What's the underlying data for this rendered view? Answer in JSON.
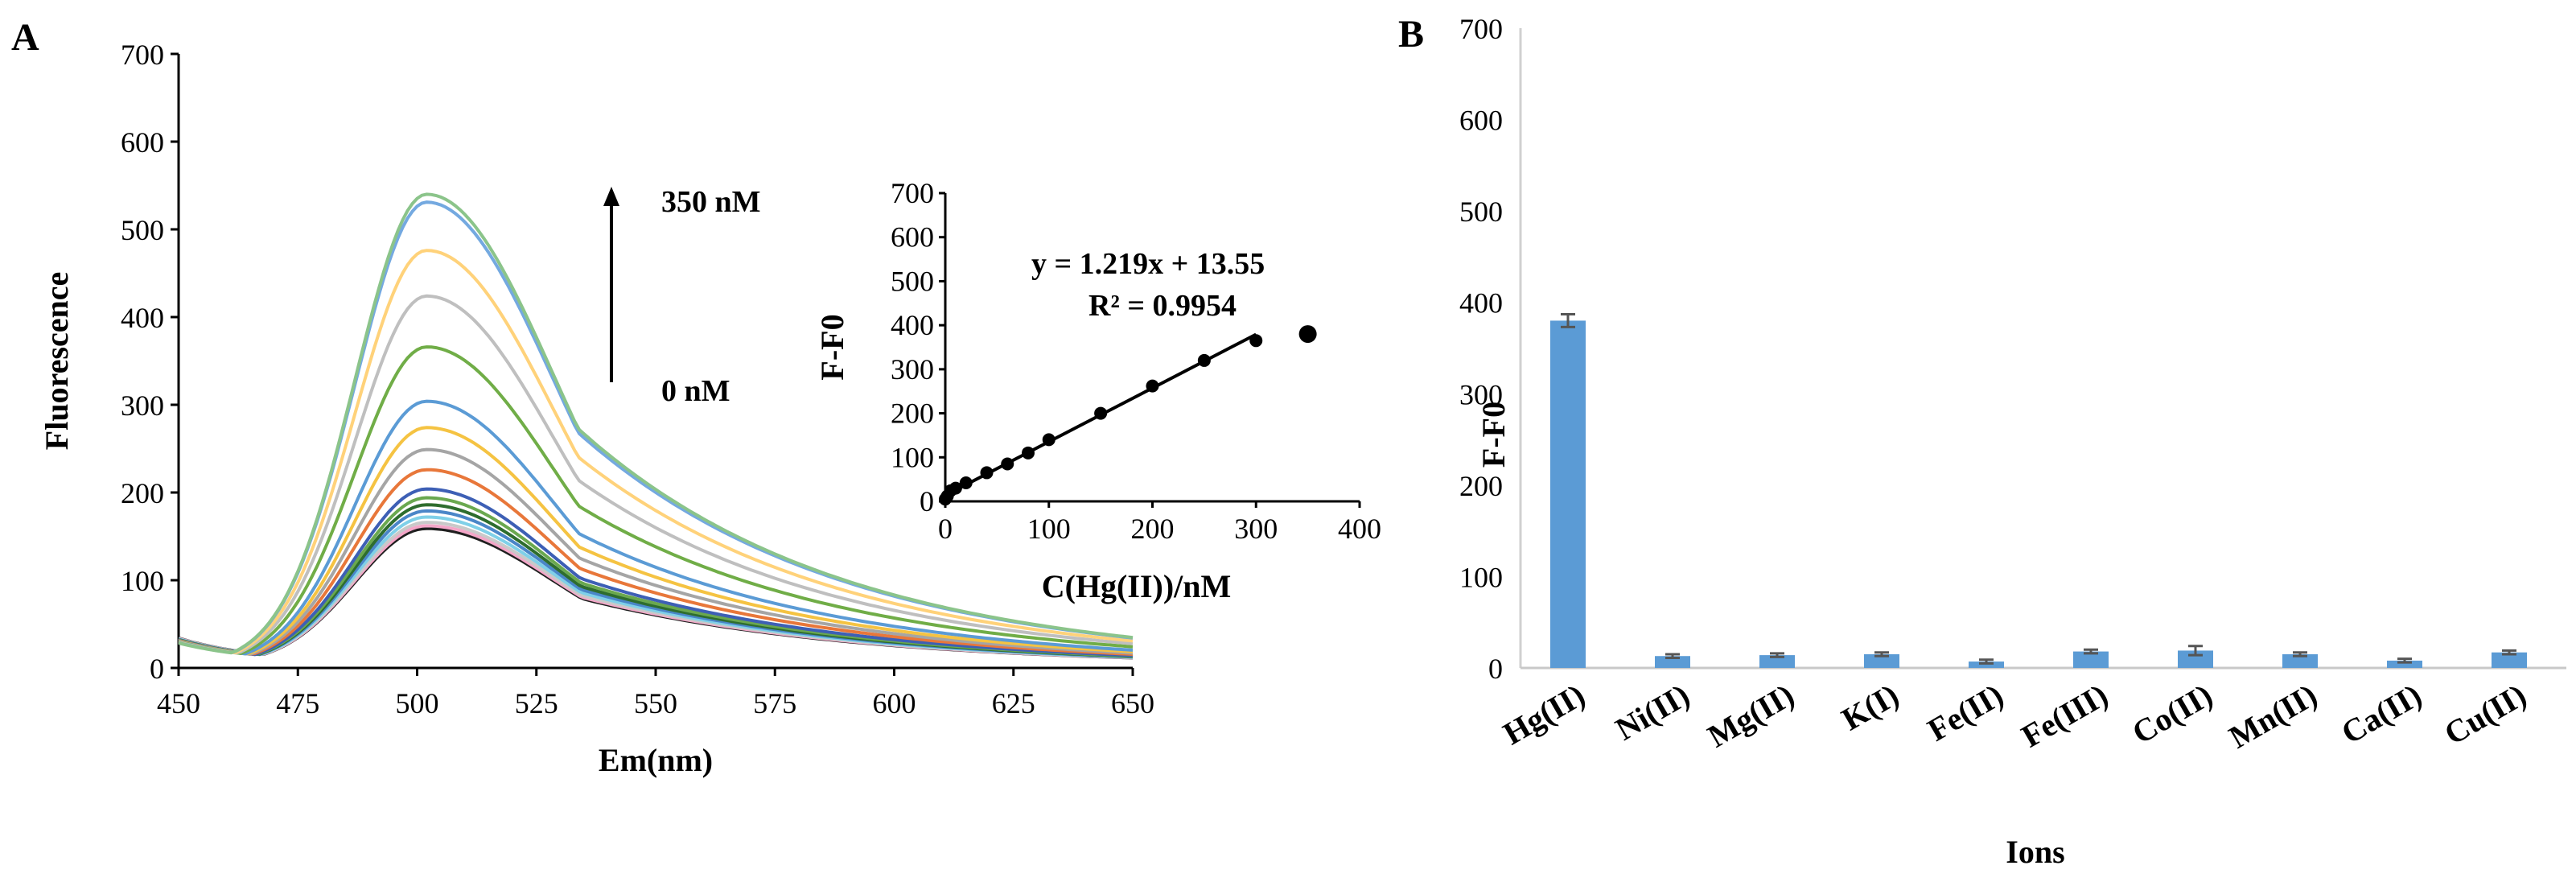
{
  "panels": {
    "a_label": "A",
    "b_label": "B"
  },
  "chart_data": [
    {
      "type": "line",
      "xlabel": "Em(nm)",
      "ylabel": "Fluorescence",
      "xlim": [
        450,
        650
      ],
      "ylim": [
        0,
        700
      ],
      "xticks": [
        450,
        475,
        500,
        525,
        550,
        575,
        600,
        625,
        650
      ],
      "yticks": [
        0,
        100,
        200,
        300,
        400,
        500,
        600,
        700
      ],
      "grid": false,
      "peak_x": 502,
      "annotations": {
        "top": "350 nM",
        "bottom": "0 nM"
      },
      "series": [
        {
          "peak": 155,
          "color": "#1f1f1f"
        },
        {
          "peak": 158,
          "color": "#f4a6c8"
        },
        {
          "peak": 162,
          "color": "#c9c9c9"
        },
        {
          "peak": 168,
          "color": "#7fd0e8"
        },
        {
          "peak": 175,
          "color": "#4a86c8"
        },
        {
          "peak": 182,
          "color": "#2e6d2e"
        },
        {
          "peak": 190,
          "color": "#6aa84f"
        },
        {
          "peak": 200,
          "color": "#3d5fb5"
        },
        {
          "peak": 222,
          "color": "#e8773a"
        },
        {
          "peak": 245,
          "color": "#a5a5a5"
        },
        {
          "peak": 270,
          "color": "#f5c342"
        },
        {
          "peak": 300,
          "color": "#5b9bd5"
        },
        {
          "peak": 362,
          "color": "#70ad47"
        },
        {
          "peak": 420,
          "color": "#bfbfbf"
        },
        {
          "peak": 472,
          "color": "#ffd27a"
        },
        {
          "peak": 527,
          "color": "#74a9e0"
        },
        {
          "peak": 536,
          "color": "#8bc48a"
        }
      ]
    },
    {
      "type": "scatter",
      "xlabel": "C(Hg(II))/nM",
      "ylabel": "F-F0",
      "xlim": [
        0,
        400
      ],
      "ylim": [
        0,
        700
      ],
      "xticks": [
        0,
        100,
        200,
        300,
        400
      ],
      "yticks": [
        0,
        100,
        200,
        300,
        400,
        500,
        600,
        700
      ],
      "equation": "y = 1.219x + 13.55",
      "r2": "R² = 0.9954",
      "fit": {
        "slope": 1.219,
        "intercept": 13.55,
        "x_range": [
          0,
          300
        ]
      },
      "x": [
        0,
        2,
        5,
        10,
        20,
        40,
        60,
        80,
        100,
        150,
        200,
        250,
        300,
        350
      ],
      "y": [
        5,
        12,
        24,
        30,
        42,
        65,
        85,
        110,
        140,
        200,
        262,
        320,
        365,
        380
      ]
    },
    {
      "type": "bar",
      "xlabel": "Ions",
      "ylabel": "F-F0",
      "ylim": [
        0,
        700
      ],
      "yticks": [
        0,
        100,
        200,
        300,
        400,
        500,
        600,
        700
      ],
      "categories": [
        "Hg(II)",
        "Ni(II)",
        "Mg(II)",
        "K(I)",
        "Fe(II)",
        "Fe(III)",
        "Co(II)",
        "Mn(II)",
        "Ca(II)",
        "Cu(II)"
      ],
      "values": [
        380,
        13,
        14,
        15,
        7,
        18,
        19,
        15,
        8,
        17
      ],
      "errors": [
        7,
        2,
        2,
        2,
        2,
        2,
        5,
        2,
        2,
        2
      ],
      "color": "#5b9bd5"
    }
  ]
}
